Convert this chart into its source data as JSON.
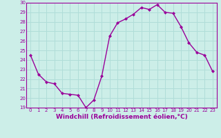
{
  "x": [
    0,
    1,
    2,
    3,
    4,
    5,
    6,
    7,
    8,
    9,
    10,
    11,
    12,
    13,
    14,
    15,
    16,
    17,
    18,
    19,
    20,
    21,
    22,
    23
  ],
  "y": [
    24.5,
    22.5,
    21.7,
    21.5,
    20.5,
    20.4,
    20.3,
    19.0,
    19.8,
    22.3,
    26.5,
    27.9,
    28.3,
    28.8,
    29.5,
    29.3,
    29.8,
    29.0,
    28.9,
    27.5,
    25.8,
    24.8,
    24.5,
    22.8
  ],
  "line_color": "#990099",
  "marker": "D",
  "marker_size": 2.0,
  "linewidth": 1.0,
  "xlabel": "Windchill (Refroidissement éolien,°C)",
  "ylabel": "",
  "ylim": [
    19,
    30
  ],
  "xlim": [
    -0.5,
    23.5
  ],
  "yticks": [
    19,
    20,
    21,
    22,
    23,
    24,
    25,
    26,
    27,
    28,
    29,
    30
  ],
  "xticks": [
    0,
    1,
    2,
    3,
    4,
    5,
    6,
    7,
    8,
    9,
    10,
    11,
    12,
    13,
    14,
    15,
    16,
    17,
    18,
    19,
    20,
    21,
    22,
    23
  ],
  "bg_color": "#cceee8",
  "grid_color": "#b0ddd8",
  "tick_label_color": "#990099",
  "xlabel_color": "#990099",
  "tick_fontsize": 5.0,
  "xlabel_fontsize": 6.5,
  "spine_color": "#990099"
}
